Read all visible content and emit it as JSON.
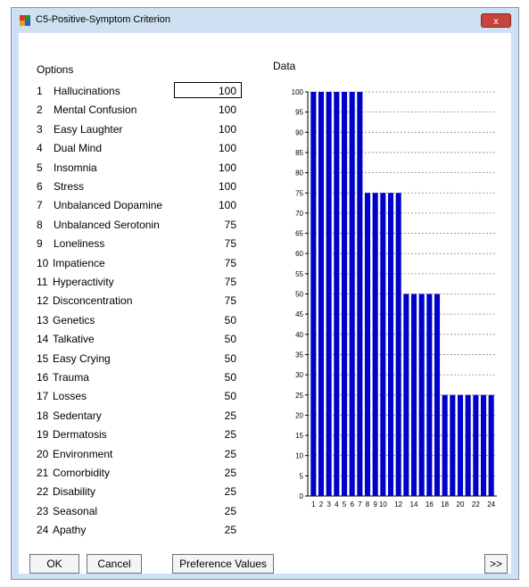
{
  "window": {
    "title": "C5-Positive-Symptom Criterion",
    "close_glyph": "x"
  },
  "labels": {
    "options": "Options",
    "data": "Data"
  },
  "options": [
    {
      "num": "1",
      "label": "Hallucinations",
      "value": "100"
    },
    {
      "num": "2",
      "label": "Mental Confusion",
      "value": "100"
    },
    {
      "num": "3",
      "label": "Easy Laughter",
      "value": "100"
    },
    {
      "num": "4",
      "label": "Dual Mind",
      "value": "100"
    },
    {
      "num": "5",
      "label": "Insomnia",
      "value": "100"
    },
    {
      "num": "6",
      "label": "Stress",
      "value": "100"
    },
    {
      "num": "7",
      "label": "Unbalanced Dopamine",
      "value": "100"
    },
    {
      "num": "8",
      "label": "Unbalanced Serotonin",
      "value": "75"
    },
    {
      "num": "9",
      "label": "Loneliness",
      "value": "75"
    },
    {
      "num": "10",
      "label": "Impatience",
      "value": "75"
    },
    {
      "num": "11",
      "label": "Hyperactivity",
      "value": "75"
    },
    {
      "num": "12",
      "label": "Disconcentration",
      "value": "75"
    },
    {
      "num": "13",
      "label": "Genetics",
      "value": "50"
    },
    {
      "num": "14",
      "label": "Talkative",
      "value": "50"
    },
    {
      "num": "15",
      "label": "Easy Crying",
      "value": "50"
    },
    {
      "num": "16",
      "label": "Trauma",
      "value": "50"
    },
    {
      "num": "17",
      "label": "Losses",
      "value": "50"
    },
    {
      "num": "18",
      "label": "Sedentary",
      "value": "25"
    },
    {
      "num": "19",
      "label": "Dermatosis",
      "value": "25"
    },
    {
      "num": "20",
      "label": "Environment",
      "value": "25"
    },
    {
      "num": "21",
      "label": "Comorbidity",
      "value": "25"
    },
    {
      "num": "22",
      "label": "Disability",
      "value": "25"
    },
    {
      "num": "23",
      "label": "Seasonal",
      "value": "25"
    },
    {
      "num": "24",
      "label": "Apathy",
      "value": "25"
    }
  ],
  "buttons": {
    "ok": "OK",
    "cancel": "Cancel",
    "preference": "Preference Values",
    "next": ">>"
  },
  "chart_data": {
    "type": "bar",
    "categories": [
      "1",
      "2",
      "3",
      "4",
      "5",
      "6",
      "7",
      "8",
      "9",
      "10",
      "11",
      "12",
      "13",
      "14",
      "15",
      "16",
      "17",
      "18",
      "19",
      "20",
      "21",
      "22",
      "23",
      "24"
    ],
    "values": [
      100,
      100,
      100,
      100,
      100,
      100,
      100,
      75,
      75,
      75,
      75,
      75,
      50,
      50,
      50,
      50,
      50,
      25,
      25,
      25,
      25,
      25,
      25,
      25
    ],
    "x_tick_labels": [
      "1",
      "2",
      "3",
      "4",
      "5",
      "6",
      "7",
      "8",
      "9",
      "10",
      "12",
      "14",
      "16",
      "18",
      "20",
      "22",
      "24"
    ],
    "y_ticks": [
      0,
      5,
      10,
      15,
      20,
      25,
      30,
      35,
      40,
      45,
      50,
      55,
      60,
      65,
      70,
      75,
      80,
      85,
      90,
      95,
      100
    ],
    "ylim": [
      0,
      100
    ],
    "bar_color": "#0000c8",
    "grid": true
  }
}
